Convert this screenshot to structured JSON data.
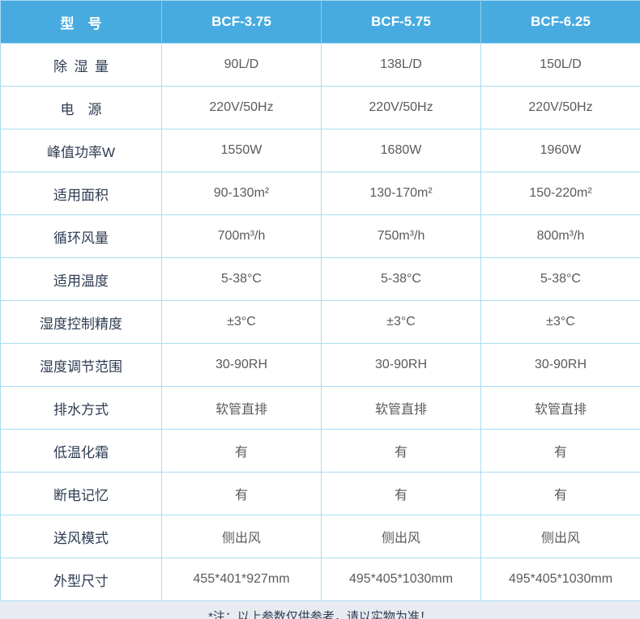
{
  "colors": {
    "header_bg": "#47abe0",
    "header_divider": "#8fccec",
    "cell_border": "#a9dbf2",
    "label_text": "#2e3b52",
    "value_text": "#595a5c",
    "note_bg": "#e8ecf1"
  },
  "table": {
    "header": {
      "label": "型　号",
      "models": [
        "BCF-3.75",
        "BCF-5.75",
        "BCF-6.25"
      ]
    },
    "rows": [
      {
        "label": "除 湿 量",
        "values": [
          "90L/D",
          "138L/D",
          "150L/D"
        ]
      },
      {
        "label": "电　源",
        "values": [
          "220V/50Hz",
          "220V/50Hz",
          "220V/50Hz"
        ]
      },
      {
        "label": "峰值功率W",
        "values": [
          "1550W",
          "1680W",
          "1960W"
        ]
      },
      {
        "label": "适用面积",
        "values": [
          "90-130m²",
          "130-170m²",
          "150-220m²"
        ]
      },
      {
        "label": "循环风量",
        "values": [
          "700m³/h",
          "750m³/h",
          "800m³/h"
        ]
      },
      {
        "label": "适用温度",
        "values": [
          "5-38°C",
          "5-38°C",
          "5-38°C"
        ]
      },
      {
        "label": "湿度控制精度",
        "values": [
          "±3°C",
          "±3°C",
          "±3°C"
        ]
      },
      {
        "label": "湿度调节范围",
        "values": [
          "30-90RH",
          "30-90RH",
          "30-90RH"
        ]
      },
      {
        "label": "排水方式",
        "values": [
          "软管直排",
          "软管直排",
          "软管直排"
        ]
      },
      {
        "label": "低温化霜",
        "values": [
          "有",
          "有",
          "有"
        ]
      },
      {
        "label": "断电记忆",
        "values": [
          "有",
          "有",
          "有"
        ]
      },
      {
        "label": "送风模式",
        "values": [
          "侧出风",
          "侧出风",
          "侧出风"
        ]
      },
      {
        "label": "外型尺寸",
        "values": [
          "455*401*927mm",
          "495*405*1030mm",
          "495*405*1030mm"
        ]
      }
    ],
    "note": "*注：以上参数仅供参考，请以实物为准！"
  }
}
